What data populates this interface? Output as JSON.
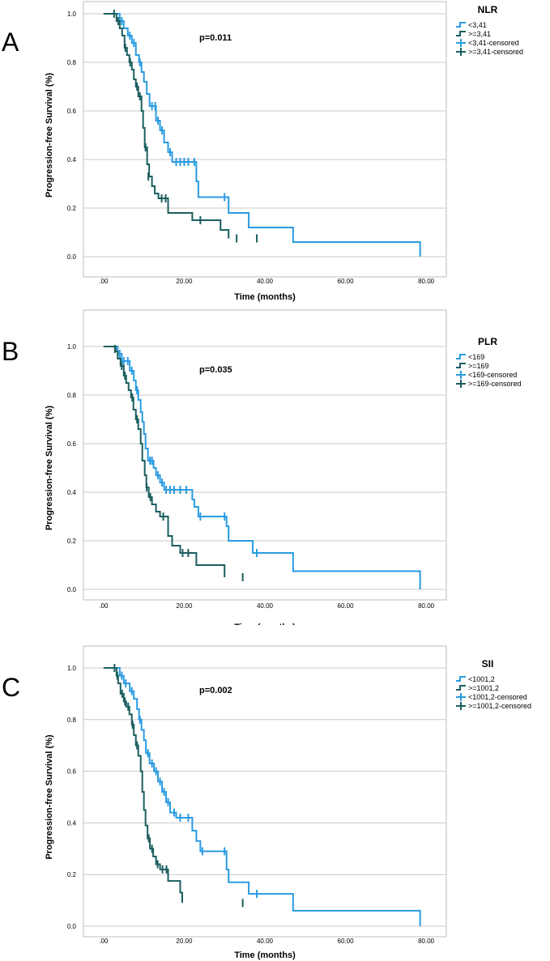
{
  "colors": {
    "low": "#2a9be0",
    "high": "#1b5e5f",
    "grid": "#c8c8c8",
    "frame": "#bdbdbd"
  },
  "chart_data": [
    {
      "type": "line",
      "panel_label": "A",
      "title": "",
      "xlabel": "Time (months)",
      "ylabel": "Progression-free Survival (%)",
      "xlim": [
        -5,
        85
      ],
      "ylim": [
        0,
        1
      ],
      "x_ticks": [
        ".00",
        "20.00",
        "40.00",
        "60.00",
        "80.00"
      ],
      "y_ticks": [
        "0.0",
        "0.2",
        "0.4",
        "0.6",
        "0.8",
        "1.0"
      ],
      "pvalue": "p=0.011",
      "legend_title": "NLR",
      "legend": [
        "<3,41",
        ">=3,41",
        "<3,41-censored",
        ">=3,41-censored"
      ],
      "series": [
        {
          "name": "<3,41",
          "color_key": "low",
          "steps": [
            [
              0,
              1.0
            ],
            [
              4,
              0.97
            ],
            [
              5,
              0.94
            ],
            [
              6,
              0.91
            ],
            [
              7,
              0.88
            ],
            [
              8,
              0.83
            ],
            [
              8.8,
              0.8
            ],
            [
              9.4,
              0.76
            ],
            [
              10,
              0.72
            ],
            [
              10.7,
              0.67
            ],
            [
              11.4,
              0.62
            ],
            [
              13,
              0.56
            ],
            [
              14,
              0.52
            ],
            [
              15,
              0.47
            ],
            [
              16,
              0.43
            ],
            [
              17,
              0.39
            ],
            [
              23,
              0.31
            ],
            [
              23.5,
              0.245
            ],
            [
              31,
              0.18
            ],
            [
              36,
              0.12
            ],
            [
              47,
              0.06
            ],
            [
              78.5,
              0.0
            ]
          ],
          "censored": [
            [
              4.5,
              0.97
            ],
            [
              6.5,
              0.91
            ],
            [
              7.5,
              0.88
            ],
            [
              9,
              0.8
            ],
            [
              12,
              0.62
            ],
            [
              12.8,
              0.62
            ],
            [
              13.5,
              0.56
            ],
            [
              14.5,
              0.52
            ],
            [
              16,
              0.455
            ],
            [
              16.5,
              0.43
            ],
            [
              18,
              0.39
            ],
            [
              19,
              0.39
            ],
            [
              20,
              0.39
            ],
            [
              21,
              0.39
            ],
            [
              22.5,
              0.39
            ],
            [
              30,
              0.245
            ]
          ]
        },
        {
          "name": ">=3,41",
          "color_key": "high",
          "steps": [
            [
              0,
              1.0
            ],
            [
              3.2,
              0.97
            ],
            [
              4,
              0.94
            ],
            [
              4.6,
              0.91
            ],
            [
              5.2,
              0.86
            ],
            [
              5.8,
              0.83
            ],
            [
              6.4,
              0.8
            ],
            [
              7,
              0.77
            ],
            [
              7.5,
              0.73
            ],
            [
              8,
              0.7
            ],
            [
              8.6,
              0.66
            ],
            [
              9.4,
              0.6
            ],
            [
              9.8,
              0.53
            ],
            [
              10.2,
              0.45
            ],
            [
              10.8,
              0.38
            ],
            [
              11.3,
              0.33
            ],
            [
              12,
              0.29
            ],
            [
              12.7,
              0.26
            ],
            [
              13.6,
              0.24
            ],
            [
              16,
              0.18
            ],
            [
              22,
              0.15
            ],
            [
              29,
              0.11
            ],
            [
              31,
              0.075
            ]
          ],
          "censored": [
            [
              2.6,
              1.0
            ],
            [
              3.6,
              0.97
            ],
            [
              5.4,
              0.86
            ],
            [
              6.6,
              0.8
            ],
            [
              8.3,
              0.7
            ],
            [
              9,
              0.66
            ],
            [
              10.4,
              0.45
            ],
            [
              11.1,
              0.33
            ],
            [
              14.4,
              0.24
            ],
            [
              15.4,
              0.24
            ],
            [
              24,
              0.15
            ],
            [
              33,
              0.075
            ],
            [
              38,
              0.075
            ]
          ]
        }
      ]
    },
    {
      "type": "line",
      "panel_label": "B",
      "title": "",
      "xlabel": "Time (months)",
      "ylabel": "Progression-free Survival (%)",
      "xlim": [
        -5,
        85
      ],
      "ylim": [
        0,
        1
      ],
      "x_ticks": [
        ".00",
        "20.00",
        "40.00",
        "60.00",
        "80.00"
      ],
      "y_ticks": [
        "0.0",
        "0.2",
        "0.4",
        "0.6",
        "0.8",
        "1.0"
      ],
      "pvalue": "p=0.035",
      "legend_title": "PLR",
      "legend": [
        "<169",
        ">=169",
        "<169-censored",
        ">=169-censored"
      ],
      "series": [
        {
          "name": "<169",
          "color_key": "low",
          "steps": [
            [
              0,
              1.0
            ],
            [
              3.5,
              0.97
            ],
            [
              4.5,
              0.94
            ],
            [
              6.5,
              0.9
            ],
            [
              7.5,
              0.86
            ],
            [
              8,
              0.82
            ],
            [
              8.6,
              0.78
            ],
            [
              9.2,
              0.73
            ],
            [
              9.6,
              0.69
            ],
            [
              10,
              0.64
            ],
            [
              10.4,
              0.58
            ],
            [
              11,
              0.53
            ],
            [
              12.4,
              0.5
            ],
            [
              13,
              0.47
            ],
            [
              14,
              0.44
            ],
            [
              15,
              0.41
            ],
            [
              22,
              0.37
            ],
            [
              22.5,
              0.34
            ],
            [
              23.5,
              0.3
            ],
            [
              30.5,
              0.26
            ],
            [
              31,
              0.2
            ],
            [
              37,
              0.15
            ],
            [
              47,
              0.075
            ],
            [
              78.5,
              0.0
            ]
          ],
          "censored": [
            [
              4,
              0.97
            ],
            [
              5,
              0.94
            ],
            [
              6,
              0.94
            ],
            [
              7,
              0.9
            ],
            [
              8.3,
              0.82
            ],
            [
              11.5,
              0.53
            ],
            [
              12,
              0.53
            ],
            [
              13.5,
              0.47
            ],
            [
              14.5,
              0.44
            ],
            [
              15.5,
              0.41
            ],
            [
              16.5,
              0.41
            ],
            [
              17.5,
              0.41
            ],
            [
              19,
              0.41
            ],
            [
              20.5,
              0.41
            ],
            [
              24,
              0.3
            ],
            [
              30,
              0.3
            ],
            [
              38,
              0.15
            ]
          ]
        },
        {
          "name": ">=169",
          "color_key": "high",
          "steps": [
            [
              0,
              1.0
            ],
            [
              3,
              0.98
            ],
            [
              3.5,
              0.95
            ],
            [
              4.2,
              0.92
            ],
            [
              5,
              0.88
            ],
            [
              5.6,
              0.85
            ],
            [
              6.2,
              0.82
            ],
            [
              6.8,
              0.79
            ],
            [
              7.4,
              0.74
            ],
            [
              8,
              0.7
            ],
            [
              8.6,
              0.66
            ],
            [
              9.2,
              0.6
            ],
            [
              9.6,
              0.53
            ],
            [
              10.2,
              0.47
            ],
            [
              10.6,
              0.42
            ],
            [
              11.2,
              0.38
            ],
            [
              12,
              0.35
            ],
            [
              13,
              0.32
            ],
            [
              14,
              0.3
            ],
            [
              16,
              0.22
            ],
            [
              17,
              0.18
            ],
            [
              19,
              0.15
            ],
            [
              23,
              0.1
            ],
            [
              30,
              0.05
            ]
          ],
          "censored": [
            [
              2.8,
              0.99
            ],
            [
              4.5,
              0.92
            ],
            [
              5.3,
              0.88
            ],
            [
              7.1,
              0.79
            ],
            [
              8.3,
              0.7
            ],
            [
              10.7,
              0.42
            ],
            [
              11.6,
              0.38
            ],
            [
              14.8,
              0.3
            ],
            [
              19.6,
              0.15
            ],
            [
              21,
              0.15
            ],
            [
              34.5,
              0.05
            ]
          ]
        }
      ]
    },
    {
      "type": "line",
      "panel_label": "C",
      "title": "",
      "xlabel": "Time (months)",
      "ylabel": "Progression-free Survival (%)",
      "xlim": [
        -5,
        85
      ],
      "ylim": [
        0,
        1
      ],
      "x_ticks": [
        ".00",
        "20.00",
        "40.00",
        "60.00",
        "80.00"
      ],
      "y_ticks": [
        "0.0",
        "0.2",
        "0.4",
        "0.6",
        "0.8",
        "1.0"
      ],
      "pvalue": "p=0.002",
      "legend_title": "SII",
      "legend": [
        "<1001,2",
        ">=1001,2",
        "<1001,2-censored",
        ">=1001,2-censored"
      ],
      "series": [
        {
          "name": "<1001,2",
          "color_key": "low",
          "steps": [
            [
              0,
              1.0
            ],
            [
              4,
              0.97
            ],
            [
              5,
              0.94
            ],
            [
              6.5,
              0.91
            ],
            [
              7.5,
              0.88
            ],
            [
              8.3,
              0.84
            ],
            [
              8.8,
              0.8
            ],
            [
              9.4,
              0.76
            ],
            [
              10,
              0.72
            ],
            [
              10.5,
              0.67
            ],
            [
              11.4,
              0.63
            ],
            [
              12.5,
              0.6
            ],
            [
              13.5,
              0.56
            ],
            [
              14.5,
              0.52
            ],
            [
              15.5,
              0.48
            ],
            [
              16.5,
              0.44
            ],
            [
              18,
              0.42
            ],
            [
              22,
              0.37
            ],
            [
              23,
              0.33
            ],
            [
              24,
              0.29
            ],
            [
              30.5,
              0.22
            ],
            [
              31,
              0.17
            ],
            [
              36,
              0.125
            ],
            [
              47,
              0.06
            ],
            [
              78.5,
              0.0
            ]
          ],
          "censored": [
            [
              4.5,
              0.97
            ],
            [
              5.5,
              0.94
            ],
            [
              7,
              0.91
            ],
            [
              9,
              0.8
            ],
            [
              11,
              0.67
            ],
            [
              12,
              0.63
            ],
            [
              13,
              0.6
            ],
            [
              14,
              0.56
            ],
            [
              15,
              0.52
            ],
            [
              16,
              0.48
            ],
            [
              17.5,
              0.44
            ],
            [
              19,
              0.42
            ],
            [
              21,
              0.42
            ],
            [
              24.5,
              0.29
            ],
            [
              30,
              0.29
            ],
            [
              38,
              0.125
            ]
          ]
        },
        {
          "name": ">=1001,2",
          "color_key": "high",
          "steps": [
            [
              0,
              1.0
            ],
            [
              3.2,
              0.97
            ],
            [
              3.6,
              0.94
            ],
            [
              4.2,
              0.9
            ],
            [
              5,
              0.87
            ],
            [
              5.6,
              0.85
            ],
            [
              6.4,
              0.82
            ],
            [
              7,
              0.78
            ],
            [
              7.5,
              0.74
            ],
            [
              8,
              0.7
            ],
            [
              8.6,
              0.66
            ],
            [
              9.2,
              0.6
            ],
            [
              9.6,
              0.52
            ],
            [
              10,
              0.45
            ],
            [
              10.4,
              0.39
            ],
            [
              10.9,
              0.34
            ],
            [
              11.5,
              0.3
            ],
            [
              12.3,
              0.27
            ],
            [
              13,
              0.24
            ],
            [
              14,
              0.22
            ],
            [
              16,
              0.175
            ],
            [
              19,
              0.13
            ],
            [
              19.5,
              0.09
            ]
          ],
          "censored": [
            [
              2.7,
              1.0
            ],
            [
              3.4,
              0.97
            ],
            [
              4.6,
              0.9
            ],
            [
              5.3,
              0.87
            ],
            [
              6.1,
              0.85
            ],
            [
              7.2,
              0.78
            ],
            [
              8.3,
              0.7
            ],
            [
              11.2,
              0.34
            ],
            [
              12,
              0.3
            ],
            [
              13.4,
              0.24
            ],
            [
              14.6,
              0.22
            ],
            [
              15.6,
              0.22
            ],
            [
              34.5,
              0.09
            ]
          ]
        }
      ]
    }
  ]
}
